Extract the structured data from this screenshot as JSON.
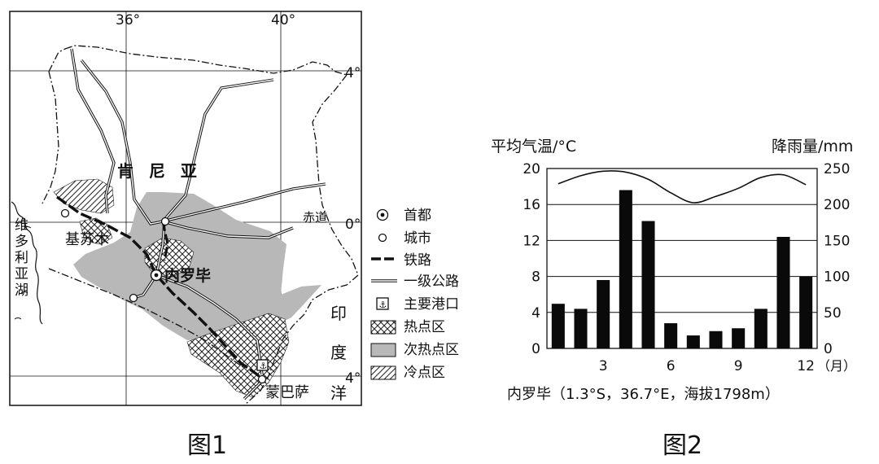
{
  "figure1": {
    "caption": "图1",
    "longitudes": [
      "36°",
      "40°"
    ],
    "latitude_labels": [
      "4°",
      "0°",
      "4°"
    ],
    "country": "肯 尼 亚",
    "lake": "维多利亚湖",
    "equator_label": "赤道",
    "ocean": "印度洋",
    "cities": {
      "kisumu": "基苏木",
      "nairobi": "内罗毕",
      "mombasa": "蒙巴萨"
    },
    "legend": [
      {
        "symbol": "capital",
        "label": "首都"
      },
      {
        "symbol": "city",
        "label": "城市"
      },
      {
        "symbol": "railway",
        "label": "铁路"
      },
      {
        "symbol": "highway",
        "label": "一级公路"
      },
      {
        "symbol": "port",
        "label": "主要港口"
      },
      {
        "symbol": "hot",
        "label": "热点区"
      },
      {
        "symbol": "subhot",
        "label": "次热点区"
      },
      {
        "symbol": "cold",
        "label": "冷点区"
      }
    ]
  },
  "figure2": {
    "caption": "图2",
    "station": "内罗毕（1.3°S，36.7°E，海拔1798m）",
    "chart_data": {
      "type": "bar+line",
      "left_axis_label": "平均气温/°C",
      "right_axis_label": "降雨量/mm",
      "x_label": "（月）",
      "x_ticks": [
        "3",
        "6",
        "9",
        "12"
      ],
      "left_ylim": [
        0,
        20
      ],
      "left_ticks": [
        "0",
        "4",
        "8",
        "12",
        "16",
        "20"
      ],
      "right_ylim": [
        0,
        250
      ],
      "right_ticks": [
        "0",
        "50",
        "100",
        "150",
        "200",
        "250"
      ],
      "months": [
        1,
        2,
        3,
        4,
        5,
        6,
        7,
        8,
        9,
        10,
        11,
        12
      ],
      "precipitation_mm": [
        62,
        55,
        95,
        220,
        177,
        35,
        18,
        24,
        28,
        55,
        155,
        100
      ],
      "temperature_c": [
        18.3,
        19.2,
        19.7,
        19.6,
        18.8,
        17.3,
        16.2,
        16.9,
        17.8,
        19.0,
        19.3,
        18.2
      ],
      "grid": "horizontal"
    }
  }
}
